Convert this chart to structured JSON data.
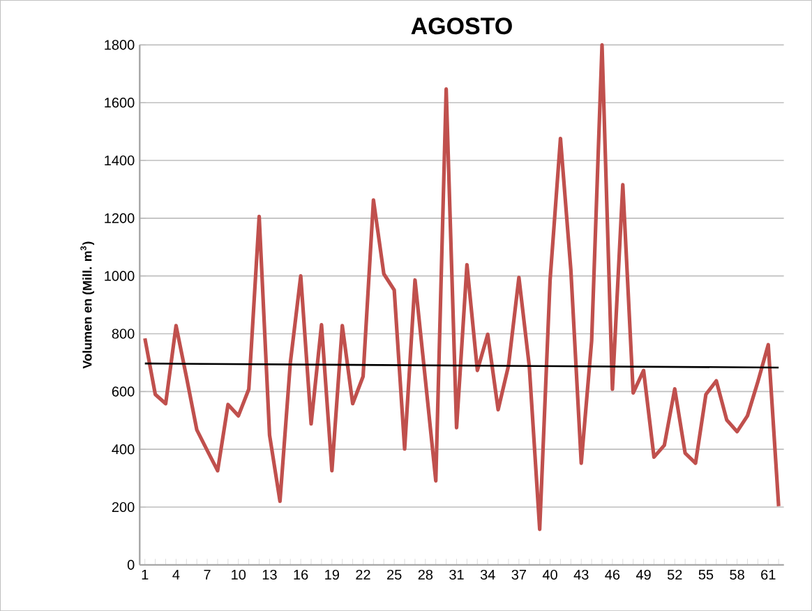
{
  "chart_data": {
    "type": "line",
    "title": "AGOSTO",
    "ylabel": "Volumen en (Mill. m$^{3}$)",
    "x": [
      1,
      2,
      3,
      4,
      5,
      6,
      7,
      8,
      9,
      10,
      11,
      12,
      13,
      14,
      15,
      16,
      17,
      18,
      19,
      20,
      21,
      22,
      23,
      24,
      25,
      26,
      27,
      28,
      29,
      30,
      31,
      32,
      33,
      34,
      35,
      36,
      37,
      38,
      39,
      40,
      41,
      42,
      43,
      44,
      45,
      46,
      47,
      48,
      49,
      50,
      51,
      52,
      53,
      54,
      55,
      56,
      57,
      58,
      59,
      60,
      61,
      62
    ],
    "series": [
      {
        "color": "#c0504d",
        "values": [
          784,
          590,
          558,
          828,
          650,
          467,
          396,
          326,
          555,
          516,
          608,
          1206,
          449,
          220,
          700,
          1000,
          488,
          831,
          326,
          828,
          558,
          652,
          1263,
          1007,
          951,
          401,
          986,
          640,
          291,
          1647,
          475,
          1039,
          673,
          798,
          537,
          690,
          995,
          687,
          123,
          986,
          1476,
          1021,
          352,
          775,
          1800,
          608,
          1316,
          595,
          673,
          373,
          414,
          609,
          387,
          352,
          590,
          637,
          502,
          461,
          516,
          634,
          762,
          203
        ]
      },
      {
        "type": "line",
        "color": "#000000",
        "x": [
          1,
          62
        ],
        "values": [
          697,
          683
        ]
      }
    ],
    "xlim": [
      0.5,
      62.5
    ],
    "ylim": [
      0,
      1800
    ],
    "xticks": [
      1,
      {
        "value": 2,
        "label": null
      },
      {
        "value": 3,
        "label": null
      },
      4,
      {
        "value": 5,
        "label": null
      },
      {
        "value": 6,
        "label": null
      },
      7,
      {
        "value": 8,
        "label": null
      },
      {
        "value": 9,
        "label": null
      },
      10,
      {
        "value": 11,
        "label": null
      },
      {
        "value": 12,
        "label": null
      },
      13,
      {
        "value": 14,
        "label": null
      },
      {
        "value": 15,
        "label": null
      },
      16,
      {
        "value": 17,
        "label": null
      },
      {
        "value": 18,
        "label": null
      },
      19,
      {
        "value": 20,
        "label": null
      },
      {
        "value": 21,
        "label": null
      },
      22,
      {
        "value": 23,
        "label": null
      },
      {
        "value": 24,
        "label": null
      },
      25,
      {
        "value": 26,
        "label": null
      },
      {
        "value": 27,
        "label": null
      },
      28,
      {
        "value": 29,
        "label": null
      },
      {
        "value": 30,
        "label": null
      },
      31,
      {
        "value": 32,
        "label": null
      },
      {
        "value": 33,
        "label": null
      },
      34,
      {
        "value": 35,
        "label": null
      },
      {
        "value": 36,
        "label": null
      },
      37,
      {
        "value": 38,
        "label": null
      },
      {
        "value": 39,
        "label": null
      },
      40,
      {
        "value": 41,
        "label": null
      },
      {
        "value": 42,
        "label": null
      },
      43,
      {
        "value": 44,
        "label": null
      },
      {
        "value": 45,
        "label": null
      },
      46,
      {
        "value": 47,
        "label": null
      },
      {
        "value": 48,
        "label": null
      },
      49,
      {
        "value": 50,
        "label": null
      },
      {
        "value": 51,
        "label": null
      },
      52,
      {
        "value": 53,
        "label": null
      },
      {
        "value": 54,
        "label": null
      },
      55,
      {
        "value": 56,
        "label": null
      },
      {
        "value": 57,
        "label": null
      },
      58,
      {
        "value": 59,
        "label": null
      },
      {
        "value": 60,
        "label": null
      },
      61,
      {
        "value": 62,
        "label": null
      }
    ],
    "yticks": [
      0,
      200,
      400,
      600,
      800,
      1000,
      1200,
      1400,
      1600,
      1800
    ],
    "grid": "y",
    "marker": "none",
    "line_style": "solid"
  }
}
